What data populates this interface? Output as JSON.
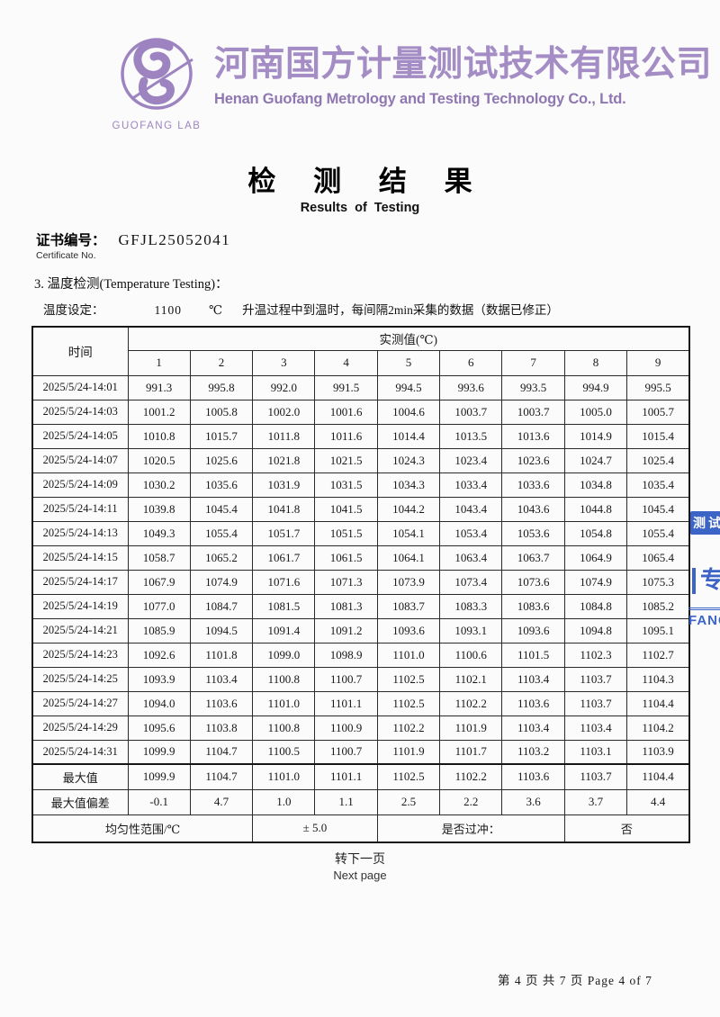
{
  "header": {
    "logo_text": "GUOFANG LAB",
    "company_cn": "河南国方计量测试技术有限公司",
    "company_en": "Henan Guofang Metrology and Testing Technology Co., Ltd.",
    "accent_color": "#a48cc4"
  },
  "title": {
    "cn": "检 测 结 果",
    "en": "Results of  Testing"
  },
  "certificate": {
    "label_cn": "证书编号：",
    "number": "GFJL25052041",
    "label_en": "Certificate No."
  },
  "section": {
    "heading": "3. 温度检测(Temperature Testing)：",
    "setting_label": "温度设定：",
    "setting_value": "1100",
    "setting_unit": "℃",
    "setting_note": "升温过程中到温时，每间隔2min采集的数据（数据已修正）"
  },
  "table": {
    "time_header": "时间",
    "measured_header": "实测值(℃)",
    "channel_headers": [
      "1",
      "2",
      "3",
      "4",
      "5",
      "6",
      "7",
      "8",
      "9"
    ],
    "rows": [
      {
        "time": "2025/5/24-14:01",
        "values": [
          "991.3",
          "995.8",
          "992.0",
          "991.5",
          "994.5",
          "993.6",
          "993.5",
          "994.9",
          "995.5"
        ]
      },
      {
        "time": "2025/5/24-14:03",
        "values": [
          "1001.2",
          "1005.8",
          "1002.0",
          "1001.6",
          "1004.6",
          "1003.7",
          "1003.7",
          "1005.0",
          "1005.7"
        ]
      },
      {
        "time": "2025/5/24-14:05",
        "values": [
          "1010.8",
          "1015.7",
          "1011.8",
          "1011.6",
          "1014.4",
          "1013.5",
          "1013.6",
          "1014.9",
          "1015.4"
        ]
      },
      {
        "time": "2025/5/24-14:07",
        "values": [
          "1020.5",
          "1025.6",
          "1021.8",
          "1021.5",
          "1024.3",
          "1023.4",
          "1023.6",
          "1024.7",
          "1025.4"
        ]
      },
      {
        "time": "2025/5/24-14:09",
        "values": [
          "1030.2",
          "1035.6",
          "1031.9",
          "1031.5",
          "1034.3",
          "1033.4",
          "1033.6",
          "1034.8",
          "1035.4"
        ]
      },
      {
        "time": "2025/5/24-14:11",
        "values": [
          "1039.8",
          "1045.4",
          "1041.8",
          "1041.5",
          "1044.2",
          "1043.4",
          "1043.6",
          "1044.8",
          "1045.4"
        ]
      },
      {
        "time": "2025/5/24-14:13",
        "values": [
          "1049.3",
          "1055.4",
          "1051.7",
          "1051.5",
          "1054.1",
          "1053.4",
          "1053.6",
          "1054.8",
          "1055.4"
        ]
      },
      {
        "time": "2025/5/24-14:15",
        "values": [
          "1058.7",
          "1065.2",
          "1061.7",
          "1061.5",
          "1064.1",
          "1063.4",
          "1063.7",
          "1064.9",
          "1065.4"
        ]
      },
      {
        "time": "2025/5/24-14:17",
        "values": [
          "1067.9",
          "1074.9",
          "1071.6",
          "1071.3",
          "1073.9",
          "1073.4",
          "1073.6",
          "1074.9",
          "1075.3"
        ]
      },
      {
        "time": "2025/5/24-14:19",
        "values": [
          "1077.0",
          "1084.7",
          "1081.5",
          "1081.3",
          "1083.7",
          "1083.3",
          "1083.6",
          "1084.8",
          "1085.2"
        ]
      },
      {
        "time": "2025/5/24-14:21",
        "values": [
          "1085.9",
          "1094.5",
          "1091.4",
          "1091.2",
          "1093.6",
          "1093.1",
          "1093.6",
          "1094.8",
          "1095.1"
        ]
      },
      {
        "time": "2025/5/24-14:23",
        "values": [
          "1092.6",
          "1101.8",
          "1099.0",
          "1098.9",
          "1101.0",
          "1100.6",
          "1101.5",
          "1102.3",
          "1102.7"
        ]
      },
      {
        "time": "2025/5/24-14:25",
        "values": [
          "1093.9",
          "1103.4",
          "1100.8",
          "1100.7",
          "1102.5",
          "1102.1",
          "1103.4",
          "1103.7",
          "1104.3"
        ]
      },
      {
        "time": "2025/5/24-14:27",
        "values": [
          "1094.0",
          "1103.6",
          "1101.0",
          "1101.1",
          "1102.5",
          "1102.2",
          "1103.6",
          "1103.7",
          "1104.4"
        ]
      },
      {
        "time": "2025/5/24-14:29",
        "values": [
          "1095.6",
          "1103.8",
          "1100.8",
          "1100.9",
          "1102.2",
          "1101.9",
          "1103.4",
          "1103.4",
          "1104.2"
        ]
      },
      {
        "time": "2025/5/24-14:31",
        "values": [
          "1099.9",
          "1104.7",
          "1100.5",
          "1100.7",
          "1101.9",
          "1101.7",
          "1103.2",
          "1103.1",
          "1103.9"
        ]
      }
    ],
    "max_row": {
      "label": "最大值",
      "values": [
        "1099.9",
        "1104.7",
        "1101.0",
        "1101.1",
        "1102.5",
        "1102.2",
        "1103.6",
        "1103.7",
        "1104.4"
      ]
    },
    "max_dev_row": {
      "label": "最大值偏差",
      "values": [
        "-0.1",
        "4.7",
        "1.0",
        "1.1",
        "2.5",
        "2.2",
        "3.6",
        "3.7",
        "4.4"
      ]
    },
    "footer_row": {
      "uniformity_label": "均匀性范围/℃",
      "uniformity_value": "± 5.0",
      "overshoot_label": "是否过冲：",
      "overshoot_value": "否"
    }
  },
  "pagination": {
    "next_cn": "转下一页",
    "next_en": "Next page",
    "page_info": "第 4 页 共 7 页 Page 4 of 7"
  },
  "stamp": {
    "color": "#3b64c6",
    "fragment_top": "测试",
    "fragment_mid": "专",
    "fragment_bottom": "FANG"
  }
}
